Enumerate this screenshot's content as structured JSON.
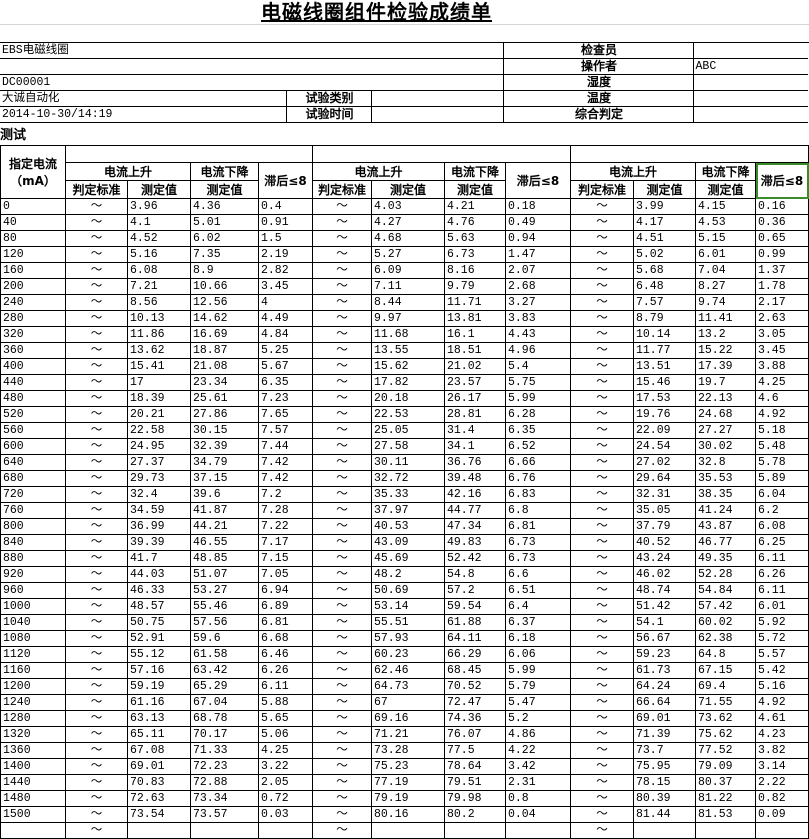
{
  "title": "电磁线圈组件检验成绩单",
  "info": {
    "product": "EBS电磁线圈",
    "code": "DC00001",
    "company": "大诚自动化",
    "datetime": "2014-10-30/14:19",
    "test_type_label": "试验类别",
    "test_type_value": "",
    "test_time_label": "试验时间",
    "test_time_value": "",
    "inspector_label": "检查员",
    "inspector_value": "",
    "operator_label": "操作者",
    "operator_value": "ABC",
    "humidity_label": "湿度",
    "humidity_value": "",
    "temperature_label": "温度",
    "temperature_value": "",
    "verdict_label": "综合判定",
    "verdict_value": ""
  },
  "section_label": "测试",
  "headers": {
    "current": "指定电流",
    "unit": "（mA）",
    "rising": "电流上升",
    "falling": "电流下降",
    "hysteresis": "滞后≤8",
    "standard": "判定标准",
    "measured": "测定值"
  },
  "standard_symbol": "～",
  "selected_cell_color": "#3a8b2b",
  "rows": [
    [
      "0",
      "3.96",
      "4.36",
      "0.4",
      "4.03",
      "4.21",
      "0.18",
      "3.99",
      "4.15",
      "0.16"
    ],
    [
      "40",
      "4.1",
      "5.01",
      "0.91",
      "4.27",
      "4.76",
      "0.49",
      "4.17",
      "4.53",
      "0.36"
    ],
    [
      "80",
      "4.52",
      "6.02",
      "1.5",
      "4.68",
      "5.63",
      "0.94",
      "4.51",
      "5.15",
      "0.65"
    ],
    [
      "120",
      "5.16",
      "7.35",
      "2.19",
      "5.27",
      "6.73",
      "1.47",
      "5.02",
      "6.01",
      "0.99"
    ],
    [
      "160",
      "6.08",
      "8.9",
      "2.82",
      "6.09",
      "8.16",
      "2.07",
      "5.68",
      "7.04",
      "1.37"
    ],
    [
      "200",
      "7.21",
      "10.66",
      "3.45",
      "7.11",
      "9.79",
      "2.68",
      "6.48",
      "8.27",
      "1.78"
    ],
    [
      "240",
      "8.56",
      "12.56",
      "4",
      "8.44",
      "11.71",
      "3.27",
      "7.57",
      "9.74",
      "2.17"
    ],
    [
      "280",
      "10.13",
      "14.62",
      "4.49",
      "9.97",
      "13.81",
      "3.83",
      "8.79",
      "11.41",
      "2.63"
    ],
    [
      "320",
      "11.86",
      "16.69",
      "4.84",
      "11.68",
      "16.1",
      "4.43",
      "10.14",
      "13.2",
      "3.05"
    ],
    [
      "360",
      "13.62",
      "18.87",
      "5.25",
      "13.55",
      "18.51",
      "4.96",
      "11.77",
      "15.22",
      "3.45"
    ],
    [
      "400",
      "15.41",
      "21.08",
      "5.67",
      "15.62",
      "21.02",
      "5.4",
      "13.51",
      "17.39",
      "3.88"
    ],
    [
      "440",
      "17",
      "23.34",
      "6.35",
      "17.82",
      "23.57",
      "5.75",
      "15.46",
      "19.7",
      "4.25"
    ],
    [
      "480",
      "18.39",
      "25.61",
      "7.23",
      "20.18",
      "26.17",
      "5.99",
      "17.53",
      "22.13",
      "4.6"
    ],
    [
      "520",
      "20.21",
      "27.86",
      "7.65",
      "22.53",
      "28.81",
      "6.28",
      "19.76",
      "24.68",
      "4.92"
    ],
    [
      "560",
      "22.58",
      "30.15",
      "7.57",
      "25.05",
      "31.4",
      "6.35",
      "22.09",
      "27.27",
      "5.18"
    ],
    [
      "600",
      "24.95",
      "32.39",
      "7.44",
      "27.58",
      "34.1",
      "6.52",
      "24.54",
      "30.02",
      "5.48"
    ],
    [
      "640",
      "27.37",
      "34.79",
      "7.42",
      "30.11",
      "36.76",
      "6.66",
      "27.02",
      "32.8",
      "5.78"
    ],
    [
      "680",
      "29.73",
      "37.15",
      "7.42",
      "32.72",
      "39.48",
      "6.76",
      "29.64",
      "35.53",
      "5.89"
    ],
    [
      "720",
      "32.4",
      "39.6",
      "7.2",
      "35.33",
      "42.16",
      "6.83",
      "32.31",
      "38.35",
      "6.04"
    ],
    [
      "760",
      "34.59",
      "41.87",
      "7.28",
      "37.97",
      "44.77",
      "6.8",
      "35.05",
      "41.24",
      "6.2"
    ],
    [
      "800",
      "36.99",
      "44.21",
      "7.22",
      "40.53",
      "47.34",
      "6.81",
      "37.79",
      "43.87",
      "6.08"
    ],
    [
      "840",
      "39.39",
      "46.55",
      "7.17",
      "43.09",
      "49.83",
      "6.73",
      "40.52",
      "46.77",
      "6.25"
    ],
    [
      "880",
      "41.7",
      "48.85",
      "7.15",
      "45.69",
      "52.42",
      "6.73",
      "43.24",
      "49.35",
      "6.11"
    ],
    [
      "920",
      "44.03",
      "51.07",
      "7.05",
      "48.2",
      "54.8",
      "6.6",
      "46.02",
      "52.28",
      "6.26"
    ],
    [
      "960",
      "46.33",
      "53.27",
      "6.94",
      "50.69",
      "57.2",
      "6.51",
      "48.74",
      "54.84",
      "6.11"
    ],
    [
      "1000",
      "48.57",
      "55.46",
      "6.89",
      "53.14",
      "59.54",
      "6.4",
      "51.42",
      "57.42",
      "6.01"
    ],
    [
      "1040",
      "50.75",
      "57.56",
      "6.81",
      "55.51",
      "61.88",
      "6.37",
      "54.1",
      "60.02",
      "5.92"
    ],
    [
      "1080",
      "52.91",
      "59.6",
      "6.68",
      "57.93",
      "64.11",
      "6.18",
      "56.67",
      "62.38",
      "5.72"
    ],
    [
      "1120",
      "55.12",
      "61.58",
      "6.46",
      "60.23",
      "66.29",
      "6.06",
      "59.23",
      "64.8",
      "5.57"
    ],
    [
      "1160",
      "57.16",
      "63.42",
      "6.26",
      "62.46",
      "68.45",
      "5.99",
      "61.73",
      "67.15",
      "5.42"
    ],
    [
      "1200",
      "59.19",
      "65.29",
      "6.11",
      "64.73",
      "70.52",
      "5.79",
      "64.24",
      "69.4",
      "5.16"
    ],
    [
      "1240",
      "61.16",
      "67.04",
      "5.88",
      "67",
      "72.47",
      "5.47",
      "66.64",
      "71.55",
      "4.92"
    ],
    [
      "1280",
      "63.13",
      "68.78",
      "5.65",
      "69.16",
      "74.36",
      "5.2",
      "69.01",
      "73.62",
      "4.61"
    ],
    [
      "1320",
      "65.11",
      "70.17",
      "5.06",
      "71.21",
      "76.07",
      "4.86",
      "71.39",
      "75.62",
      "4.23"
    ],
    [
      "1360",
      "67.08",
      "71.33",
      "4.25",
      "73.28",
      "77.5",
      "4.22",
      "73.7",
      "77.52",
      "3.82"
    ],
    [
      "1400",
      "69.01",
      "72.23",
      "3.22",
      "75.23",
      "78.64",
      "3.42",
      "75.95",
      "79.09",
      "3.14"
    ],
    [
      "1440",
      "70.83",
      "72.88",
      "2.05",
      "77.19",
      "79.51",
      "2.31",
      "78.15",
      "80.37",
      "2.22"
    ],
    [
      "1480",
      "72.63",
      "73.34",
      "0.72",
      "79.19",
      "79.98",
      "0.8",
      "80.39",
      "81.22",
      "0.82"
    ],
    [
      "1500",
      "73.54",
      "73.57",
      "0.03",
      "80.16",
      "80.2",
      "0.04",
      "81.44",
      "81.53",
      "0.09"
    ],
    [
      "",
      "",
      "",
      "",
      "",
      "",
      "",
      "",
      "",
      ""
    ]
  ]
}
